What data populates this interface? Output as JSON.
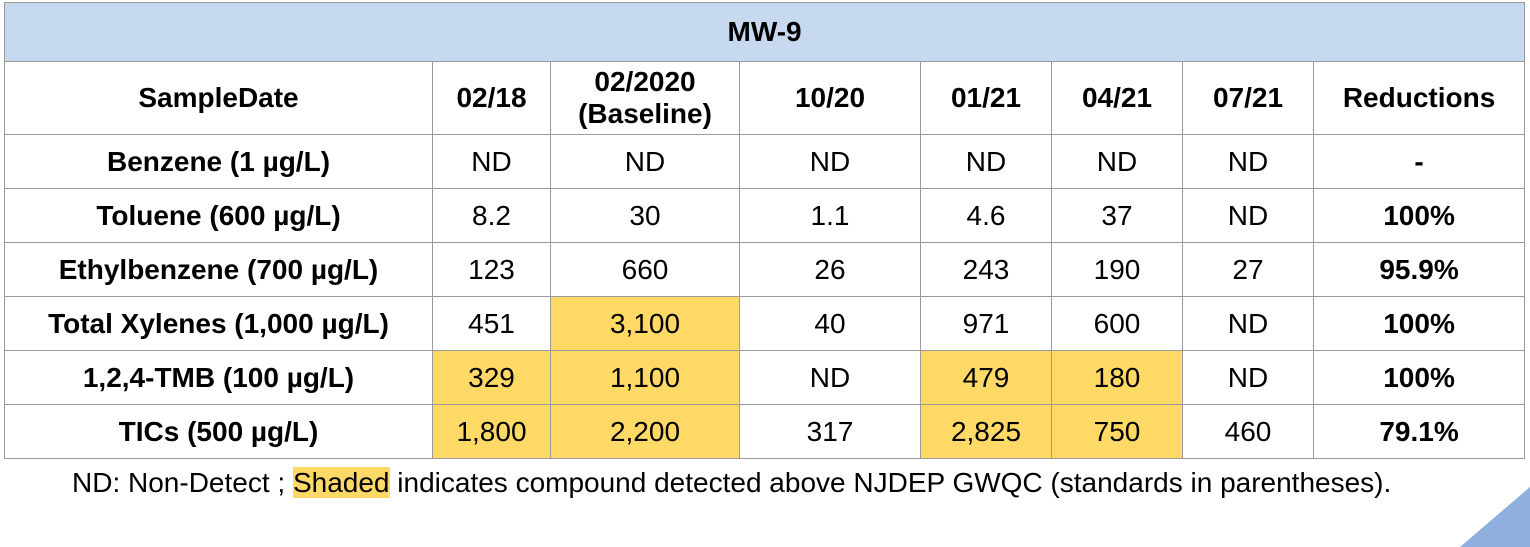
{
  "title": "MW-9",
  "header": {
    "first": "SampleDate",
    "dates": [
      {
        "line1": "02/18",
        "line2": ""
      },
      {
        "line1": "02/2020",
        "line2": "(Baseline)"
      },
      {
        "line1": "10/20",
        "line2": ""
      },
      {
        "line1": "01/21",
        "line2": ""
      },
      {
        "line1": "04/21",
        "line2": ""
      },
      {
        "line1": "07/21",
        "line2": ""
      }
    ],
    "last": "Reductions"
  },
  "rows": [
    {
      "param": "Benzene (1 µg/L)",
      "values": [
        "ND",
        "ND",
        "ND",
        "ND",
        "ND",
        "ND"
      ],
      "shaded": [
        false,
        false,
        false,
        false,
        false,
        false
      ],
      "reduction": "-"
    },
    {
      "param": "Toluene (600 µg/L)",
      "values": [
        "8.2",
        "30",
        "1.1",
        "4.6",
        "37",
        "ND"
      ],
      "shaded": [
        false,
        false,
        false,
        false,
        false,
        false
      ],
      "reduction": "100%"
    },
    {
      "param": "Ethylbenzene (700 µg/L)",
      "values": [
        "123",
        "660",
        "26",
        "243",
        "190",
        "27"
      ],
      "shaded": [
        false,
        false,
        false,
        false,
        false,
        false
      ],
      "reduction": "95.9%"
    },
    {
      "param": "Total Xylenes (1,000 µg/L)",
      "values": [
        "451",
        "3,100",
        "40",
        "971",
        "600",
        "ND"
      ],
      "shaded": [
        false,
        true,
        false,
        false,
        false,
        false
      ],
      "reduction": "100%"
    },
    {
      "param": "1,2,4-TMB (100 µg/L)",
      "values": [
        "329",
        "1,100",
        "ND",
        "479",
        "180",
        "ND"
      ],
      "shaded": [
        true,
        true,
        false,
        true,
        true,
        false
      ],
      "reduction": "100%"
    },
    {
      "param": "TICs (500 µg/L)",
      "values": [
        "1,800",
        "2,200",
        "317",
        "2,825",
        "750",
        "460"
      ],
      "shaded": [
        true,
        true,
        false,
        true,
        true,
        false
      ],
      "reduction": "79.1%"
    }
  ],
  "footnote": {
    "prefix": "ND: Non-Detect ; ",
    "highlight": "Shaded",
    "suffix": " indicates compound detected above NJDEP GWQC (standards in parentheses)."
  },
  "colors": {
    "title_bg": "#c6d9ef",
    "shade": "#ffd966",
    "border": "#9a9a9a",
    "corner_accent": "#8fb0de"
  }
}
